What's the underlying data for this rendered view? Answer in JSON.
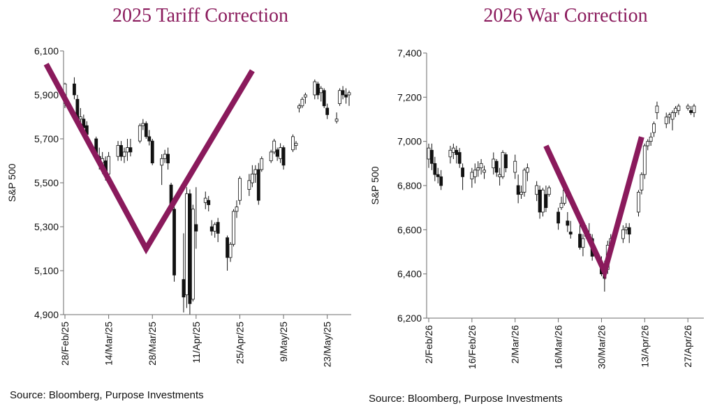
{
  "chart_data": [
    {
      "type": "candlestick",
      "title": "2025 Tariff Correction",
      "ylabel": "S&P 500",
      "xlabel": "",
      "ylim": [
        4900,
        6100
      ],
      "yticks": [
        "4,900",
        "5,100",
        "5,300",
        "5,500",
        "5,700",
        "5,900",
        "6,100"
      ],
      "ytick_values": [
        4900,
        5100,
        5300,
        5500,
        5700,
        5900,
        6100
      ],
      "xticks": [
        "28/Feb/25",
        "14/Mar/25",
        "28/Mar/25",
        "11/Apr/25",
        "25/Apr/25",
        "9/May/25",
        "23/May/25"
      ],
      "xtick_days": [
        0,
        14,
        28,
        42,
        56,
        70,
        84
      ],
      "x_day_range": [
        0,
        91
      ],
      "source": "Source: Bloomberg, Purpose Investments",
      "overlay_color": "#8a1a5c",
      "overlay_v": [
        [
          -6,
          6040
        ],
        [
          26,
          5200
        ],
        [
          60,
          6010
        ]
      ],
      "ohlc": [
        [
          0,
          5860,
          5955,
          5840,
          5950
        ],
        [
          3,
          5950,
          5980,
          5880,
          5900
        ],
        [
          4,
          5880,
          5900,
          5760,
          5780
        ],
        [
          5,
          5790,
          5840,
          5760,
          5800
        ],
        [
          6,
          5790,
          5810,
          5730,
          5750
        ],
        [
          7,
          5760,
          5780,
          5700,
          5720
        ],
        [
          10,
          5700,
          5710,
          5600,
          5620
        ],
        [
          11,
          5620,
          5660,
          5560,
          5590
        ],
        [
          12,
          5590,
          5640,
          5540,
          5610
        ],
        [
          13,
          5600,
          5620,
          5510,
          5530
        ],
        [
          14,
          5540,
          5640,
          5520,
          5620
        ],
        [
          17,
          5620,
          5690,
          5600,
          5670
        ],
        [
          18,
          5670,
          5690,
          5600,
          5620
        ],
        [
          19,
          5620,
          5660,
          5590,
          5640
        ],
        [
          20,
          5640,
          5700,
          5600,
          5660
        ],
        [
          21,
          5660,
          5700,
          5620,
          5640
        ],
        [
          24,
          5690,
          5770,
          5680,
          5760
        ],
        [
          25,
          5760,
          5790,
          5740,
          5770
        ],
        [
          26,
          5770,
          5780,
          5700,
          5710
        ],
        [
          27,
          5710,
          5740,
          5670,
          5690
        ],
        [
          28,
          5690,
          5700,
          5580,
          5590
        ],
        [
          31,
          5580,
          5630,
          5490,
          5610
        ],
        [
          32,
          5610,
          5650,
          5590,
          5630
        ],
        [
          33,
          5630,
          5660,
          5560,
          5590
        ],
        [
          34,
          5490,
          5500,
          5390,
          5400
        ],
        [
          35,
          5380,
          5400,
          5050,
          5080
        ],
        [
          38,
          5060,
          5270,
          4910,
          4980
        ],
        [
          39,
          4990,
          5480,
          4930,
          5450
        ],
        [
          40,
          5450,
          5470,
          4900,
          4950
        ],
        [
          41,
          4970,
          5400,
          4960,
          5380
        ],
        [
          42,
          5310,
          5480,
          5200,
          5280
        ],
        [
          45,
          5410,
          5460,
          5380,
          5430
        ],
        [
          46,
          5420,
          5440,
          5370,
          5400
        ],
        [
          47,
          5300,
          5330,
          5260,
          5280
        ],
        [
          48,
          5280,
          5320,
          5250,
          5310
        ],
        [
          49,
          5320,
          5340,
          5230,
          5270
        ],
        [
          52,
          5250,
          5260,
          5100,
          5160
        ],
        [
          53,
          5160,
          5230,
          5140,
          5220
        ],
        [
          54,
          5220,
          5380,
          5210,
          5370
        ],
        [
          55,
          5370,
          5420,
          5340,
          5390
        ],
        [
          56,
          5420,
          5530,
          5400,
          5520
        ],
        [
          59,
          5470,
          5540,
          5440,
          5510
        ],
        [
          60,
          5500,
          5580,
          5480,
          5540
        ],
        [
          61,
          5540,
          5580,
          5500,
          5560
        ],
        [
          62,
          5560,
          5590,
          5400,
          5420
        ],
        [
          63,
          5560,
          5620,
          5550,
          5610
        ],
        [
          66,
          5600,
          5650,
          5590,
          5640
        ],
        [
          67,
          5640,
          5700,
          5630,
          5690
        ],
        [
          68,
          5650,
          5660,
          5600,
          5620
        ],
        [
          69,
          5610,
          5680,
          5590,
          5660
        ],
        [
          70,
          5660,
          5670,
          5560,
          5580
        ],
        [
          73,
          5650,
          5720,
          5640,
          5710
        ],
        [
          74,
          5670,
          5690,
          5650,
          5680
        ],
        [
          75,
          5840,
          5860,
          5820,
          5850
        ],
        [
          76,
          5850,
          5890,
          5840,
          5880
        ],
        [
          77,
          5890,
          5910,
          5860,
          5900
        ],
        [
          80,
          5900,
          5970,
          5880,
          5960
        ],
        [
          81,
          5950,
          5960,
          5880,
          5900
        ],
        [
          82,
          5910,
          5940,
          5870,
          5930
        ],
        [
          83,
          5920,
          5930,
          5840,
          5850
        ],
        [
          84,
          5840,
          5860,
          5790,
          5810
        ],
        [
          87,
          5780,
          5820,
          5770,
          5790
        ],
        [
          88,
          5860,
          5930,
          5850,
          5920
        ],
        [
          89,
          5920,
          5940,
          5880,
          5900
        ],
        [
          90,
          5900,
          5930,
          5860,
          5890
        ],
        [
          91,
          5900,
          5920,
          5850,
          5910
        ]
      ]
    },
    {
      "type": "candlestick",
      "title": "2026 War Correction",
      "ylabel": "S&P 500",
      "xlabel": "",
      "ylim": [
        6200,
        7400
      ],
      "yticks": [
        "6,200",
        "6,400",
        "6,600",
        "6,800",
        "7,000",
        "7,200",
        "7,400"
      ],
      "ytick_values": [
        6200,
        6400,
        6600,
        6800,
        7000,
        7200,
        7400
      ],
      "xticks": [
        "2/Feb/26",
        "16/Feb/26",
        "2/Mar/26",
        "16/Mar/26",
        "30/Mar/26",
        "13/Apr/26",
        "27/Apr/26"
      ],
      "xtick_days": [
        0,
        14,
        28,
        42,
        56,
        70,
        84
      ],
      "x_day_range": [
        0,
        86
      ],
      "source": "Source: Bloomberg, Purpose Investments",
      "overlay_color": "#8a1a5c",
      "overlay_v": [
        [
          38,
          6980
        ],
        [
          57,
          6410
        ],
        [
          69,
          7020
        ]
      ],
      "ohlc": [
        [
          0,
          6920,
          6990,
          6880,
          6970
        ],
        [
          1,
          6960,
          6990,
          6870,
          6900
        ],
        [
          2,
          6900,
          6930,
          6820,
          6850
        ],
        [
          3,
          6850,
          6880,
          6810,
          6840
        ],
        [
          4,
          6840,
          6870,
          6780,
          6800
        ],
        [
          7,
          6930,
          6980,
          6900,
          6960
        ],
        [
          8,
          6950,
          6990,
          6920,
          6970
        ],
        [
          9,
          6960,
          6980,
          6900,
          6940
        ],
        [
          10,
          6950,
          6970,
          6880,
          6900
        ],
        [
          11,
          6880,
          6900,
          6780,
          6840
        ],
        [
          14,
          6830,
          6880,
          6790,
          6860
        ],
        [
          15,
          6840,
          6900,
          6810,
          6870
        ],
        [
          16,
          6870,
          6910,
          6840,
          6880
        ],
        [
          17,
          6880,
          6920,
          6850,
          6900
        ],
        [
          18,
          6860,
          6890,
          6830,
          6870
        ],
        [
          21,
          6880,
          6950,
          6850,
          6920
        ],
        [
          22,
          6910,
          6920,
          6840,
          6860
        ],
        [
          23,
          6840,
          6880,
          6800,
          6850
        ],
        [
          24,
          6840,
          6960,
          6830,
          6950
        ],
        [
          25,
          6940,
          6950,
          6860,
          6880
        ],
        [
          28,
          6860,
          6940,
          6830,
          6910
        ],
        [
          29,
          6800,
          6850,
          6720,
          6760
        ],
        [
          30,
          6760,
          6800,
          6740,
          6770
        ],
        [
          31,
          6770,
          6880,
          6750,
          6870
        ],
        [
          32,
          6860,
          6900,
          6820,
          6880
        ],
        [
          35,
          6760,
          6820,
          6730,
          6800
        ],
        [
          36,
          6780,
          6800,
          6650,
          6680
        ],
        [
          37,
          6680,
          6790,
          6660,
          6780
        ],
        [
          38,
          6760,
          6800,
          6680,
          6700
        ],
        [
          39,
          6760,
          6800,
          6750,
          6790
        ],
        [
          42,
          6680,
          6700,
          6600,
          6630
        ],
        [
          43,
          6700,
          6750,
          6690,
          6720
        ],
        [
          44,
          6720,
          6800,
          6710,
          6780
        ],
        [
          45,
          6640,
          6680,
          6590,
          6620
        ],
        [
          46,
          6590,
          6640,
          6560,
          6580
        ],
        [
          49,
          6580,
          6640,
          6510,
          6520
        ],
        [
          50,
          6520,
          6580,
          6480,
          6560
        ],
        [
          51,
          6600,
          6620,
          6560,
          6570
        ],
        [
          52,
          6560,
          6630,
          6540,
          6580
        ],
        [
          53,
          6560,
          6580,
          6460,
          6480
        ],
        [
          56,
          6440,
          6480,
          6390,
          6400
        ],
        [
          57,
          6410,
          6460,
          6320,
          6380
        ],
        [
          58,
          6420,
          6550,
          6400,
          6530
        ],
        [
          59,
          6520,
          6580,
          6500,
          6560
        ],
        [
          60,
          6560,
          6590,
          6540,
          6570
        ],
        [
          63,
          6560,
          6620,
          6540,
          6600
        ],
        [
          64,
          6600,
          6630,
          6580,
          6610
        ],
        [
          65,
          6610,
          6630,
          6540,
          6580
        ],
        [
          68,
          6680,
          6780,
          6660,
          6770
        ],
        [
          69,
          6780,
          6860,
          6760,
          6850
        ],
        [
          70,
          6850,
          6990,
          6830,
          6980
        ],
        [
          71,
          6980,
          7010,
          6960,
          7000
        ],
        [
          72,
          7000,
          7040,
          6980,
          7020
        ],
        [
          73,
          7040,
          7090,
          7020,
          7080
        ],
        [
          74,
          7130,
          7180,
          7100,
          7160
        ],
        [
          77,
          7080,
          7130,
          7060,
          7110
        ],
        [
          78,
          7110,
          7130,
          7080,
          7120
        ],
        [
          79,
          7100,
          7140,
          7050,
          7130
        ],
        [
          80,
          7130,
          7160,
          7110,
          7150
        ],
        [
          81,
          7140,
          7170,
          7120,
          7160
        ],
        [
          84,
          7150,
          7170,
          7140,
          7160
        ],
        [
          85,
          7140,
          7160,
          7120,
          7130
        ],
        [
          86,
          7130,
          7170,
          7110,
          7160
        ]
      ]
    }
  ]
}
